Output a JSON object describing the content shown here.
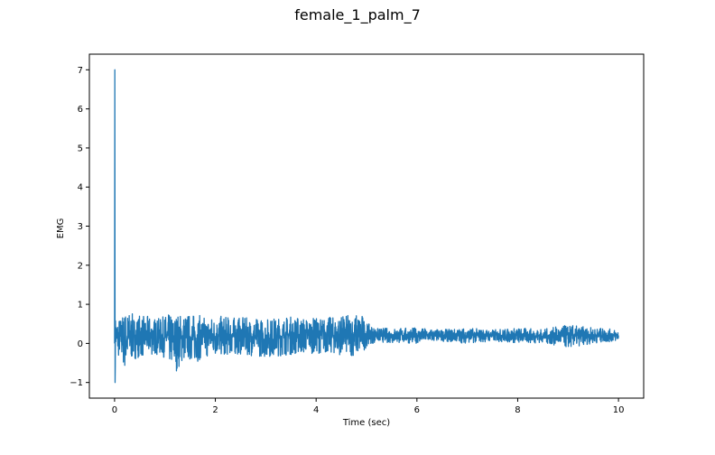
{
  "chart_data": {
    "type": "line",
    "title": "female_1_palm_7",
    "xlabel": "Time (sec)",
    "ylabel": "EMG",
    "xlim": [
      -0.5,
      10.5
    ],
    "ylim": [
      -1.4,
      7.4
    ],
    "xticks": [
      0,
      2,
      4,
      6,
      8,
      10
    ],
    "xtick_labels": [
      "0",
      "2",
      "4",
      "6",
      "8",
      "10"
    ],
    "yticks": [
      -1,
      0,
      1,
      2,
      3,
      4,
      5,
      6,
      7
    ],
    "ytick_labels": [
      "−1",
      "0",
      "1",
      "2",
      "3",
      "4",
      "5",
      "6",
      "7"
    ],
    "grid": false,
    "series_color": "#1f77b4",
    "series": [
      {
        "x": [
          0,
          0.005,
          0.01,
          0.02,
          0.03,
          0.05,
          0.1,
          0.2,
          0.3,
          0.4,
          0.5,
          0.6,
          0.7,
          0.8,
          0.9,
          1.0,
          1.2,
          1.4,
          1.6,
          1.8,
          2.0,
          2.5,
          3.0,
          3.5,
          4.0,
          4.5,
          4.9,
          5.0,
          5.2,
          5.5,
          6.0,
          6.5,
          7.0,
          7.5,
          8.0,
          8.5,
          9.0,
          9.5,
          10.0
        ],
        "upper": [
          0,
          7.0,
          0.7,
          0.6,
          0.75,
          0.6,
          0.6,
          0.7,
          0.75,
          0.6,
          0.7,
          0.6,
          0.65,
          0.6,
          0.55,
          0.65,
          0.6,
          0.7,
          0.65,
          0.6,
          0.65,
          0.6,
          0.55,
          0.65,
          0.6,
          0.65,
          0.75,
          0.5,
          0.35,
          0.35,
          0.35,
          0.3,
          0.35,
          0.3,
          0.35,
          0.3,
          0.4,
          0.35,
          0.3
        ],
        "lower": [
          0,
          -0.2,
          -1.0,
          -0.3,
          -0.2,
          -0.6,
          -0.4,
          -0.85,
          -0.6,
          -0.5,
          -0.4,
          -0.45,
          -0.4,
          -0.35,
          -0.4,
          -0.45,
          -0.95,
          -0.5,
          -0.6,
          -0.45,
          -0.4,
          -0.35,
          -0.45,
          -0.35,
          -0.3,
          -0.35,
          -0.4,
          -0.1,
          0.0,
          -0.05,
          -0.05,
          0.0,
          -0.05,
          0.0,
          -0.05,
          -0.05,
          -0.2,
          -0.05,
          0.0
        ]
      }
    ]
  }
}
